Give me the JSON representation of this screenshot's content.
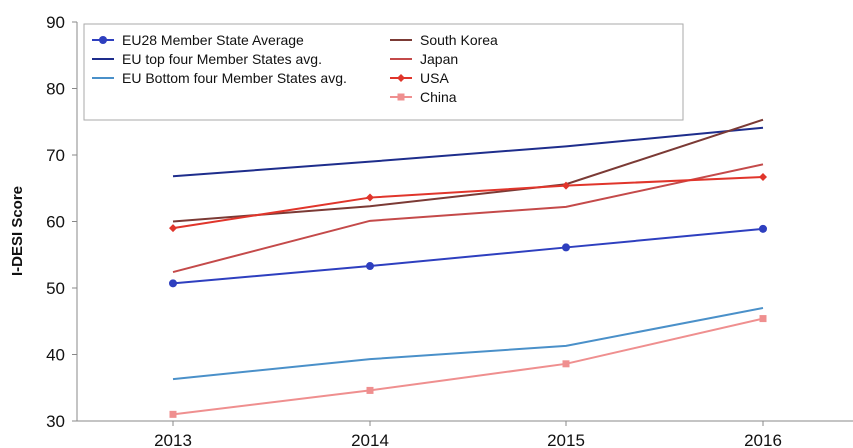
{
  "chart_data": {
    "type": "line",
    "title": "",
    "xlabel": "",
    "ylabel": "I-DESI Score",
    "x": [
      "2013",
      "2014",
      "2015",
      "2016"
    ],
    "ylim": [
      30,
      90
    ],
    "yticks": [
      30,
      40,
      50,
      60,
      70,
      80,
      90
    ],
    "grid": false,
    "legend_position": "top-left",
    "series": [
      {
        "name": "EU28 Member State Average",
        "values": [
          50.7,
          53.3,
          56.1,
          58.9
        ],
        "color": "#2e3fbf",
        "marker": "circle"
      },
      {
        "name": "EU top four Member States avg.",
        "values": [
          66.8,
          69.0,
          71.3,
          74.1
        ],
        "color": "#1e2d8c",
        "marker": "none"
      },
      {
        "name": "EU Bottom four Member States avg.",
        "values": [
          36.3,
          39.3,
          41.3,
          47.0
        ],
        "color": "#4a90c9",
        "marker": "none"
      },
      {
        "name": "South Korea",
        "values": [
          60.0,
          62.3,
          65.6,
          75.3
        ],
        "color": "#7b3a35",
        "marker": "none"
      },
      {
        "name": "Japan",
        "values": [
          52.4,
          60.1,
          62.2,
          68.6
        ],
        "color": "#c44a4a",
        "marker": "none"
      },
      {
        "name": "USA",
        "values": [
          59.0,
          63.6,
          65.4,
          66.7
        ],
        "color": "#e0352b",
        "marker": "diamond"
      },
      {
        "name": "China",
        "values": [
          31.0,
          34.6,
          38.6,
          45.4
        ],
        "color": "#ef8f8f",
        "marker": "square"
      }
    ]
  }
}
